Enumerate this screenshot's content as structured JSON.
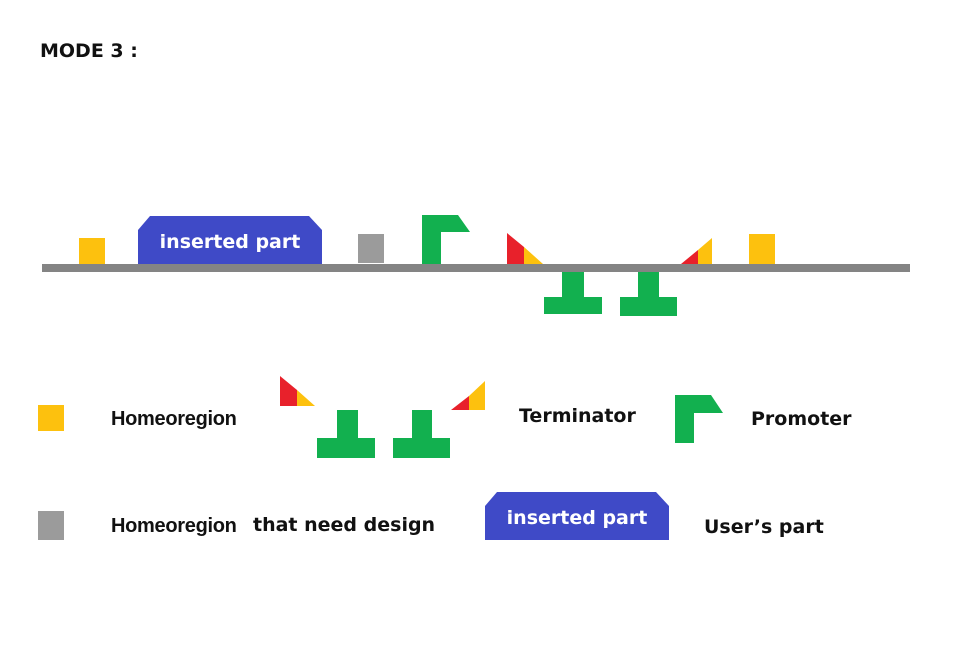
{
  "title": "MODE 3 :",
  "diagram": {
    "inserted_part_label": "inserted part"
  },
  "legend": {
    "homeoregion": "Homeoregion",
    "terminator": "Terminator",
    "promoter": "Promoter",
    "homeoregion_design_a": "Homeoregion",
    "homeoregion_design_b": "that need design",
    "inserted_part_label": "inserted part",
    "users_part": "User’s part"
  },
  "colors": {
    "homeoregion": "#FDC10E",
    "design_region": "#9B9B9B",
    "promoter": "#12B04F",
    "terminator": "#12B04F",
    "terminator_red": "#E8212B",
    "terminator_yellow": "#FDC10E",
    "inserted_part": "#3F4AC7",
    "backbone": "#848484"
  }
}
